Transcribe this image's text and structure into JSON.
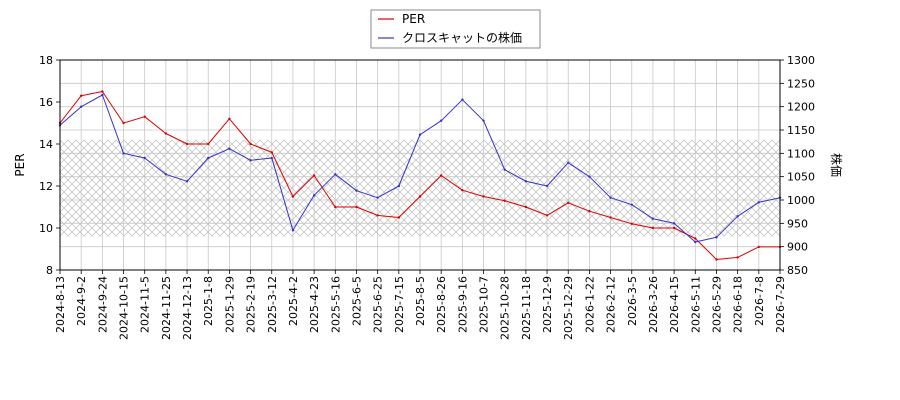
{
  "chart_data": {
    "type": "line",
    "title": "",
    "xlabel": "",
    "ylabel_left": "PER",
    "ylabel_right": "株価",
    "ylim_left": [
      8,
      18
    ],
    "ylim_right": [
      850,
      1300
    ],
    "yticks_left": [
      8,
      10,
      12,
      14,
      16,
      18
    ],
    "yticks_right": [
      850,
      900,
      950,
      1000,
      1050,
      1100,
      1150,
      1200,
      1250,
      1300
    ],
    "x_ticks": [
      "2024-8-13",
      "2024-9-2",
      "2024-9-24",
      "2024-10-15",
      "2024-11-5",
      "2024-11-25",
      "2024-12-13",
      "2025-1-8",
      "2025-1-29",
      "2025-2-19",
      "2025-3-12",
      "2025-4-2",
      "2025-4-23",
      "2025-5-16",
      "2025-6-5",
      "2025-6-25",
      "2025-7-15",
      "2025-8-5",
      "2025-8-26",
      "2025-9-16",
      "2025-10-7",
      "2025-10-28",
      "2025-11-18",
      "2025-12-9",
      "2025-12-29",
      "2026-1-22",
      "2026-2-12",
      "2026-3-5",
      "2026-3-26",
      "2026-4-15",
      "2026-5-11",
      "2026-5-29",
      "2026-6-18",
      "2026-7-8",
      "2026-7-29"
    ],
    "grid": true,
    "legend_position": "top-center",
    "hatch_band_left": [
      9.6,
      14.2
    ],
    "colors": {
      "per": "#dd0000",
      "price": "#3333cc"
    },
    "series": [
      {
        "name": "PER",
        "axis": "left",
        "x": [
          "2024-8-13",
          "2024-9-2",
          "2024-9-24",
          "2024-10-15",
          "2024-11-5",
          "2024-11-25",
          "2024-12-13",
          "2025-1-8",
          "2025-1-29",
          "2025-2-19",
          "2025-3-12",
          "2025-4-2",
          "2025-4-23",
          "2025-5-16",
          "2025-6-5",
          "2025-6-25",
          "2025-7-15",
          "2025-8-5",
          "2025-8-26",
          "2025-9-16",
          "2025-10-7",
          "2025-10-28",
          "2025-11-18",
          "2025-12-9",
          "2025-12-29",
          "2026-1-22",
          "2026-2-12",
          "2026-3-5",
          "2026-3-26",
          "2026-4-15",
          "2026-5-11",
          "2026-5-29",
          "2026-6-18",
          "2026-7-8",
          "2026-7-29"
        ],
        "values": [
          15.0,
          16.3,
          16.5,
          15.0,
          15.3,
          14.5,
          14.0,
          14.0,
          15.2,
          14.0,
          13.6,
          11.5,
          12.5,
          11.0,
          11.0,
          10.6,
          10.5,
          11.5,
          12.5,
          11.8,
          11.5,
          11.3,
          11.0,
          10.6,
          11.2,
          10.8,
          10.5,
          10.2,
          10.0,
          10.0,
          9.5,
          8.5,
          8.6,
          9.1,
          9.1
        ]
      },
      {
        "name": "クロスキャットの株価",
        "axis": "right",
        "x": [
          "2024-8-13",
          "2024-9-2",
          "2024-9-24",
          "2024-10-15",
          "2024-11-5",
          "2024-11-25",
          "2024-12-13",
          "2025-1-8",
          "2025-1-29",
          "2025-2-19",
          "2025-3-12",
          "2025-4-2",
          "2025-4-23",
          "2025-5-16",
          "2025-6-5",
          "2025-6-25",
          "2025-7-15",
          "2025-8-5",
          "2025-8-26",
          "2025-9-16",
          "2025-10-7",
          "2025-10-28",
          "2025-11-18",
          "2025-12-9",
          "2025-12-29",
          "2026-1-22",
          "2026-2-12",
          "2026-3-5",
          "2026-3-26",
          "2026-4-15",
          "2026-5-11",
          "2026-5-29",
          "2026-6-18",
          "2026-7-8",
          "2026-7-29"
        ],
        "values": [
          1160,
          1200,
          1225,
          1100,
          1090,
          1055,
          1040,
          1090,
          1110,
          1085,
          1090,
          935,
          1010,
          1055,
          1020,
          1005,
          1030,
          1140,
          1170,
          1215,
          1170,
          1065,
          1040,
          1030,
          1080,
          1050,
          1005,
          990,
          960,
          950,
          910,
          920,
          965,
          995,
          1005
        ]
      }
    ]
  }
}
